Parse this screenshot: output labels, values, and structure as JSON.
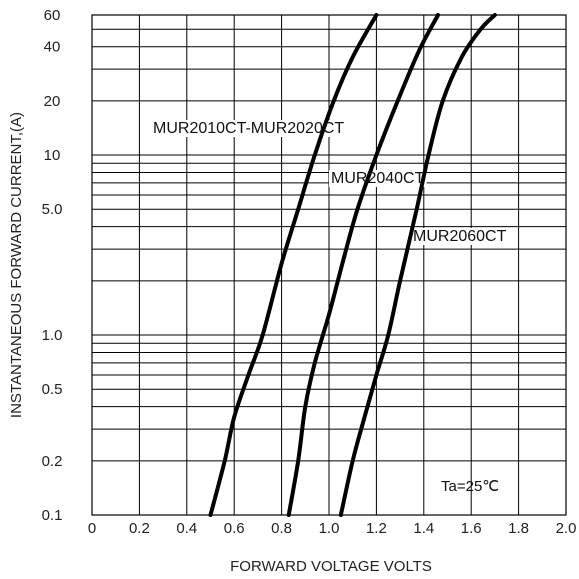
{
  "chart_data": {
    "type": "line",
    "title": "",
    "xlabel": "FORWARD VOLTAGE VOLTS",
    "ylabel": "INSTANTANEOUS FORWARD CURRENT,(A)",
    "x_scale": "linear",
    "y_scale": "log",
    "xlim": [
      0,
      2.0
    ],
    "ylim": [
      0.1,
      60
    ],
    "grid": true,
    "x_ticks": [
      "0",
      "0.2",
      "0.4",
      "0.6",
      "0.8",
      "1.0",
      "1.2",
      "1.4",
      "1.6",
      "1.8",
      "2.0"
    ],
    "x_tick_values": [
      0,
      0.2,
      0.4,
      0.6,
      0.8,
      1.0,
      1.2,
      1.4,
      1.6,
      1.8,
      2.0
    ],
    "y_ticks": [
      "0.1",
      "0.2",
      "0.5",
      "1.0",
      "5.0",
      "10",
      "20",
      "40",
      "60"
    ],
    "y_tick_values": [
      0.1,
      0.2,
      0.5,
      1.0,
      5.0,
      10,
      20,
      40,
      60
    ],
    "annotation": "Ta=25℃",
    "series": [
      {
        "name": "MUR2010CT-MUR2020CT",
        "x": [
          0.5,
          0.56,
          0.6,
          0.66,
          0.72,
          0.8,
          0.87,
          0.94,
          1.02,
          1.1,
          1.2
        ],
        "y": [
          0.1,
          0.2,
          0.35,
          0.6,
          1.0,
          2.5,
          5.0,
          10,
          20,
          35,
          60
        ]
      },
      {
        "name": "MUR2040CT",
        "x": [
          0.83,
          0.87,
          0.9,
          0.94,
          1.0,
          1.06,
          1.12,
          1.2,
          1.29,
          1.38,
          1.46
        ],
        "y": [
          0.1,
          0.2,
          0.4,
          0.7,
          1.3,
          2.6,
          5.0,
          10,
          20,
          38,
          60
        ]
      },
      {
        "name": "MUR2060CT",
        "x": [
          1.05,
          1.1,
          1.15,
          1.2,
          1.25,
          1.3,
          1.37,
          1.42,
          1.48,
          1.56,
          1.64,
          1.7
        ],
        "y": [
          0.1,
          0.2,
          0.35,
          0.6,
          1.0,
          2.0,
          5.0,
          10,
          20,
          35,
          50,
          60
        ]
      }
    ]
  },
  "series_labels": [
    {
      "text": "MUR2010CT-MUR2020CT"
    },
    {
      "text": "MUR2040CT"
    },
    {
      "text": "MUR2060CT"
    }
  ]
}
